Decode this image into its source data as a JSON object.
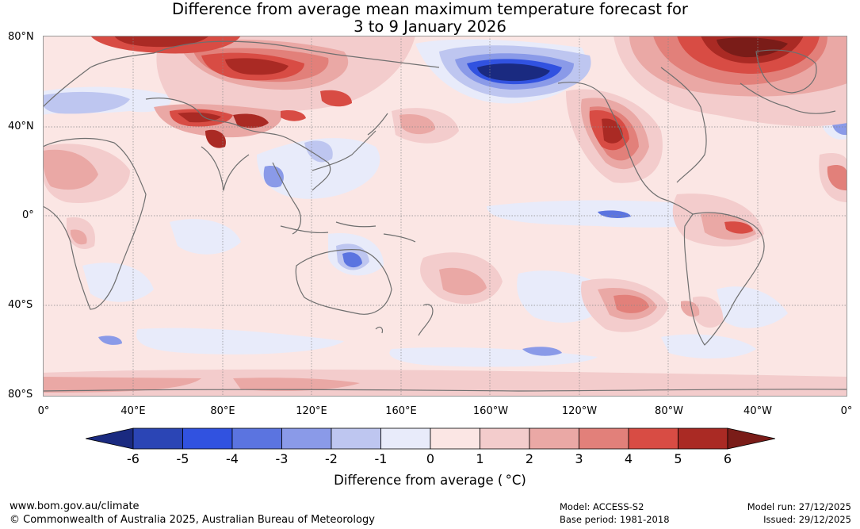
{
  "title": {
    "line1": "Difference from average mean maximum temperature forecast for",
    "line2": "3 to 9 January 2026"
  },
  "map": {
    "lat_labels": [
      "80°N",
      "40°N",
      "0°",
      "40°S",
      "80°S"
    ],
    "lon_labels": [
      "0°",
      "40°E",
      "80°E",
      "120°E",
      "160°E",
      "160°W",
      "120°W",
      "80°W",
      "40°W",
      "0°"
    ]
  },
  "colorbar": {
    "ticks": [
      "-6",
      "-5",
      "-4",
      "-3",
      "-2",
      "-1",
      "0",
      "1",
      "2",
      "3",
      "4",
      "5",
      "6"
    ],
    "colors": [
      "#1a2a80",
      "#2b45b5",
      "#3152e0",
      "#5b74e0",
      "#8a9ae8",
      "#bec6f0",
      "#e8ebfa",
      "#fbe6e4",
      "#f3cccc",
      "#eaa8a5",
      "#e2807a",
      "#d84c44",
      "#aa2a24",
      "#7a1c18"
    ],
    "title": "Difference from average ( °C)"
  },
  "footer": {
    "website": "www.bom.gov.au/climate",
    "copyright": "© Commonwealth of Australia 2025, Australian Bureau of Meteorology",
    "model": "Model: ACCESS-S2",
    "base_period": "Base period: 1981-2018",
    "model_run": "Model run: 27/12/2025",
    "issued": "Issued: 29/12/2025"
  }
}
